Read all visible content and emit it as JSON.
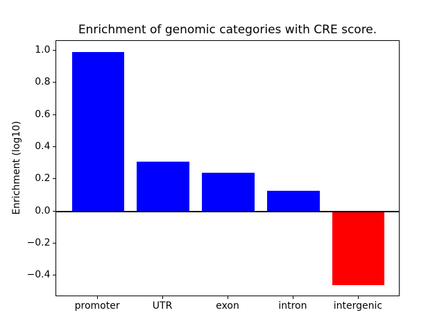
{
  "figure": {
    "background_color": "#ffffff"
  },
  "chart_data": {
    "type": "bar",
    "title": "Enrichment of genomic categories with CRE score.",
    "xlabel": "",
    "ylabel": "Enrichment (log10)",
    "categories": [
      "promoter",
      "UTR",
      "exon",
      "intron",
      "intergenic"
    ],
    "values": [
      0.99,
      0.31,
      0.24,
      0.13,
      -0.46
    ],
    "bar_colors": [
      "#0000ff",
      "#0000ff",
      "#0000ff",
      "#0000ff",
      "#ff0000"
    ],
    "positive_color": "#0000ff",
    "negative_color": "#ff0000",
    "axis_color": "#000000",
    "zero_line": true,
    "grid": false,
    "bar_width": 0.8,
    "xlim": [
      -0.64,
      4.64
    ],
    "ylim": [
      -0.5325,
      1.0625
    ],
    "y_ticks": [
      1.0,
      0.8,
      0.6,
      0.4,
      0.2,
      0.0,
      -0.2,
      -0.4
    ],
    "y_tick_labels": [
      "1.0",
      "0.8",
      "0.6",
      "0.4",
      "0.2",
      "0.0",
      "−0.2",
      "−0.4"
    ]
  }
}
